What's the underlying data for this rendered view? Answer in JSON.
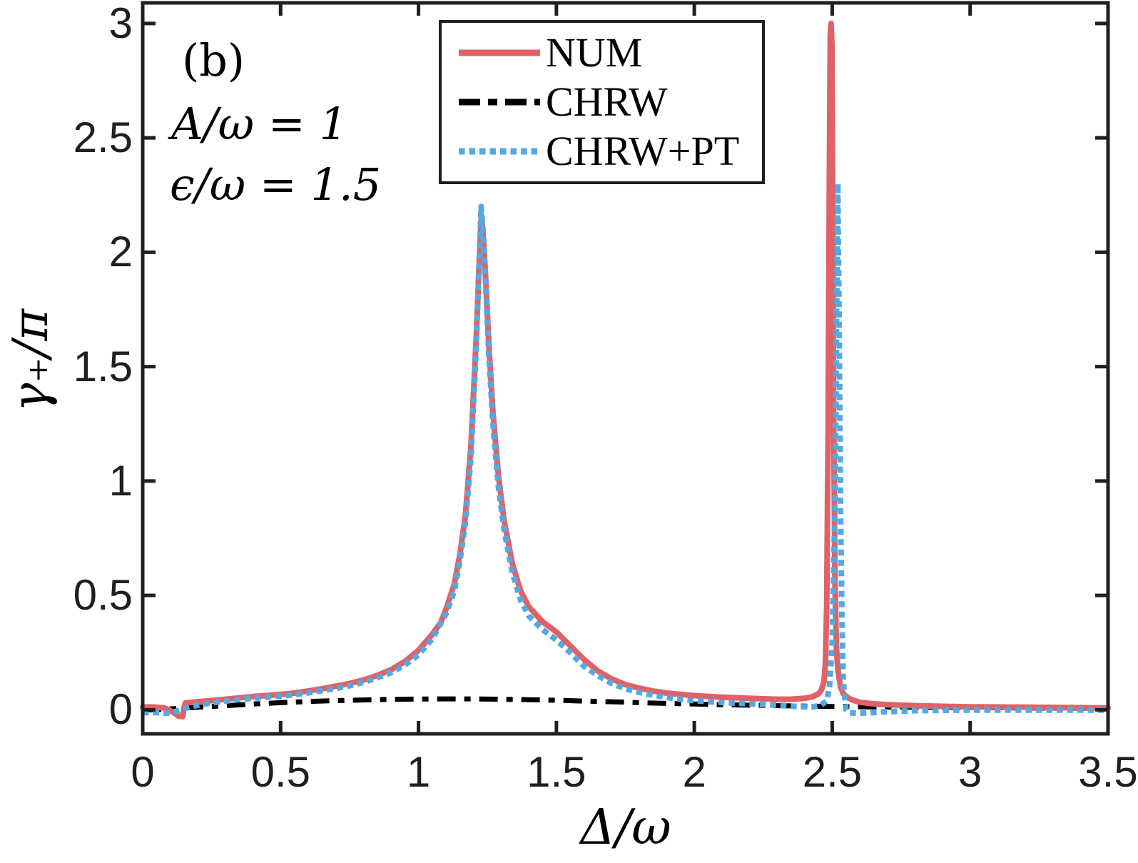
{
  "figure": {
    "panel_label": "(b)",
    "params": [
      "A/ω = 1",
      "ϵ/ω = 1.5"
    ],
    "background": "#ffffff",
    "axis_color": "#1f1f1f",
    "tick_label_color": "#1f1f1f"
  },
  "chart_data": {
    "type": "line",
    "title": "",
    "xlabel": "Δ/ω",
    "ylabel": "γ₊/π",
    "xlim": [
      0,
      3.5
    ],
    "ylim": [
      -0.105,
      3.09
    ],
    "grid": false,
    "legend_position": "top-center",
    "xticks": [
      0,
      0.5,
      1,
      1.5,
      2,
      2.5,
      3,
      3.5
    ],
    "xtick_labels": [
      "0",
      "0.5",
      "1",
      "1.5",
      "2",
      "2.5",
      "3",
      "3.5"
    ],
    "yticks": [
      0,
      0.5,
      1,
      1.5,
      2,
      2.5,
      3
    ],
    "ytick_labels": [
      "0",
      "0.5",
      "1",
      "1.5",
      "2",
      "2.5",
      "3"
    ],
    "annotations": [
      "(b)",
      "A/ω = 1",
      "ϵ/ω = 1.5"
    ],
    "series": [
      {
        "name": "NUM",
        "color": "#e06266",
        "style": "solid",
        "line_width": 8,
        "z": 2,
        "points": [
          [
            0,
            0.012
          ],
          [
            0.04,
            0.012
          ],
          [
            0.08,
            0.008
          ],
          [
            0.11,
            -0.01
          ],
          [
            0.13,
            -0.028
          ],
          [
            0.145,
            -0.03
          ],
          [
            0.15,
            0.01
          ],
          [
            0.155,
            0.03
          ],
          [
            0.2,
            0.035
          ],
          [
            0.25,
            0.04
          ],
          [
            0.3,
            0.046
          ],
          [
            0.35,
            0.052
          ],
          [
            0.4,
            0.058
          ],
          [
            0.45,
            0.062
          ],
          [
            0.5,
            0.067
          ],
          [
            0.55,
            0.073
          ],
          [
            0.6,
            0.082
          ],
          [
            0.65,
            0.092
          ],
          [
            0.7,
            0.103
          ],
          [
            0.75,
            0.115
          ],
          [
            0.8,
            0.13
          ],
          [
            0.85,
            0.15
          ],
          [
            0.9,
            0.175
          ],
          [
            0.95,
            0.21
          ],
          [
            1,
            0.26
          ],
          [
            1.05,
            0.33
          ],
          [
            1.08,
            0.38
          ],
          [
            1.1,
            0.44
          ],
          [
            1.13,
            0.55
          ],
          [
            1.15,
            0.68
          ],
          [
            1.17,
            0.85
          ],
          [
            1.19,
            1.15
          ],
          [
            1.2,
            1.4
          ],
          [
            1.21,
            1.65
          ],
          [
            1.22,
            1.95
          ],
          [
            1.228,
            2.16
          ],
          [
            1.236,
            2.05
          ],
          [
            1.245,
            1.85
          ],
          [
            1.255,
            1.6
          ],
          [
            1.27,
            1.3
          ],
          [
            1.29,
            1.02
          ],
          [
            1.31,
            0.83
          ],
          [
            1.34,
            0.64
          ],
          [
            1.37,
            0.52
          ],
          [
            1.4,
            0.45
          ],
          [
            1.45,
            0.385
          ],
          [
            1.5,
            0.34
          ],
          [
            1.55,
            0.28
          ],
          [
            1.6,
            0.22
          ],
          [
            1.65,
            0.17
          ],
          [
            1.7,
            0.135
          ],
          [
            1.75,
            0.11
          ],
          [
            1.8,
            0.095
          ],
          [
            1.85,
            0.082
          ],
          [
            1.9,
            0.073
          ],
          [
            1.95,
            0.067
          ],
          [
            2,
            0.062
          ],
          [
            2.1,
            0.055
          ],
          [
            2.2,
            0.05
          ],
          [
            2.3,
            0.046
          ],
          [
            2.35,
            0.046
          ],
          [
            2.4,
            0.05
          ],
          [
            2.43,
            0.058
          ],
          [
            2.45,
            0.07
          ],
          [
            2.46,
            0.085
          ],
          [
            2.47,
            0.12
          ],
          [
            2.475,
            0.2
          ],
          [
            2.48,
            0.45
          ],
          [
            2.485,
            1.2
          ],
          [
            2.49,
            2.4
          ],
          [
            2.493,
            2.95
          ],
          [
            2.496,
            3.0
          ],
          [
            2.499,
            2.9
          ],
          [
            2.502,
            2.2
          ],
          [
            2.505,
            1.3
          ],
          [
            2.51,
            0.55
          ],
          [
            2.515,
            0.28
          ],
          [
            2.52,
            0.18
          ],
          [
            2.53,
            0.1
          ],
          [
            2.54,
            0.07
          ],
          [
            2.56,
            0.05
          ],
          [
            2.58,
            0.04
          ],
          [
            2.6,
            0.033
          ],
          [
            2.65,
            0.026
          ],
          [
            2.7,
            0.022
          ],
          [
            2.8,
            0.018
          ],
          [
            2.9,
            0.015
          ],
          [
            3,
            0.013
          ],
          [
            3.1,
            0.012
          ],
          [
            3.2,
            0.011
          ],
          [
            3.3,
            0.01
          ],
          [
            3.4,
            0.009
          ],
          [
            3.5,
            0.008
          ]
        ]
      },
      {
        "name": "CHRW",
        "color": "#000000",
        "style": "dashdot",
        "line_width": 7,
        "z": 1,
        "points": [
          [
            0,
            -0.002
          ],
          [
            0.1,
            0.004
          ],
          [
            0.2,
            0.011
          ],
          [
            0.3,
            0.018
          ],
          [
            0.4,
            0.025
          ],
          [
            0.5,
            0.031
          ],
          [
            0.6,
            0.036
          ],
          [
            0.7,
            0.04
          ],
          [
            0.8,
            0.043
          ],
          [
            0.9,
            0.0455
          ],
          [
            1,
            0.047
          ],
          [
            1.1,
            0.0475
          ],
          [
            1.2,
            0.0475
          ],
          [
            1.3,
            0.046
          ],
          [
            1.4,
            0.044
          ],
          [
            1.5,
            0.0415
          ],
          [
            1.6,
            0.038
          ],
          [
            1.7,
            0.035
          ],
          [
            1.8,
            0.031
          ],
          [
            1.9,
            0.028
          ],
          [
            2,
            0.025
          ],
          [
            2.1,
            0.022
          ],
          [
            2.2,
            0.02
          ],
          [
            2.3,
            0.018
          ],
          [
            2.4,
            0.016
          ],
          [
            2.5,
            0.0145
          ],
          [
            2.6,
            0.013
          ],
          [
            2.7,
            0.012
          ],
          [
            2.8,
            0.011
          ],
          [
            2.9,
            0.0105
          ],
          [
            3,
            0.01
          ],
          [
            3.2,
            0.008
          ],
          [
            3.5,
            0.006
          ]
        ]
      },
      {
        "name": "CHRW+PT",
        "color": "#54a9e1",
        "style": "dotted",
        "line_width": 8,
        "z": 3,
        "points": [
          [
            0,
            -0.012
          ],
          [
            0.05,
            -0.012
          ],
          [
            0.1,
            -0.015
          ],
          [
            0.15,
            0.005
          ],
          [
            0.2,
            0.02
          ],
          [
            0.25,
            0.03
          ],
          [
            0.3,
            0.038
          ],
          [
            0.35,
            0.045
          ],
          [
            0.4,
            0.05
          ],
          [
            0.45,
            0.055
          ],
          [
            0.5,
            0.06
          ],
          [
            0.55,
            0.066
          ],
          [
            0.6,
            0.074
          ],
          [
            0.65,
            0.083
          ],
          [
            0.7,
            0.093
          ],
          [
            0.75,
            0.105
          ],
          [
            0.8,
            0.12
          ],
          [
            0.85,
            0.14
          ],
          [
            0.9,
            0.162
          ],
          [
            0.95,
            0.195
          ],
          [
            1,
            0.24
          ],
          [
            1.05,
            0.31
          ],
          [
            1.1,
            0.42
          ],
          [
            1.13,
            0.52
          ],
          [
            1.15,
            0.65
          ],
          [
            1.17,
            0.82
          ],
          [
            1.19,
            1.1
          ],
          [
            1.2,
            1.35
          ],
          [
            1.21,
            1.62
          ],
          [
            1.22,
            1.95
          ],
          [
            1.227,
            2.2
          ],
          [
            1.235,
            2.08
          ],
          [
            1.245,
            1.82
          ],
          [
            1.255,
            1.55
          ],
          [
            1.27,
            1.25
          ],
          [
            1.29,
            0.97
          ],
          [
            1.31,
            0.79
          ],
          [
            1.34,
            0.6
          ],
          [
            1.37,
            0.48
          ],
          [
            1.4,
            0.41
          ],
          [
            1.45,
            0.35
          ],
          [
            1.5,
            0.305
          ],
          [
            1.55,
            0.25
          ],
          [
            1.6,
            0.19
          ],
          [
            1.65,
            0.15
          ],
          [
            1.7,
            0.115
          ],
          [
            1.75,
            0.092
          ],
          [
            1.8,
            0.076
          ],
          [
            1.85,
            0.064
          ],
          [
            1.9,
            0.054
          ],
          [
            1.95,
            0.046
          ],
          [
            2,
            0.04
          ],
          [
            2.1,
            0.032
          ],
          [
            2.2,
            0.026
          ],
          [
            2.3,
            0.02
          ],
          [
            2.35,
            0.016
          ],
          [
            2.4,
            0.013
          ],
          [
            2.43,
            0.013
          ],
          [
            2.46,
            0.02
          ],
          [
            2.48,
            0.04
          ],
          [
            2.49,
            0.1
          ],
          [
            2.5,
            0.3
          ],
          [
            2.51,
            0.9
          ],
          [
            2.515,
            1.6
          ],
          [
            2.52,
            2.3
          ],
          [
            2.525,
            1.7
          ],
          [
            2.53,
            0.9
          ],
          [
            2.535,
            0.4
          ],
          [
            2.54,
            0.12
          ],
          [
            2.55,
            0
          ],
          [
            2.56,
            -0.013
          ],
          [
            2.6,
            -0.015
          ],
          [
            2.65,
            -0.012
          ],
          [
            2.7,
            -0.008
          ],
          [
            2.8,
            -0.004
          ],
          [
            2.9,
            -0.002
          ],
          [
            3,
            -0.001
          ],
          [
            3.2,
            -0.001
          ],
          [
            3.5,
            -0.001
          ]
        ]
      }
    ]
  },
  "legend": {
    "sample_dash_patterns": {
      "solid": "",
      "dashdot": "30 11 13 11",
      "dotted": "8.5 6"
    }
  }
}
